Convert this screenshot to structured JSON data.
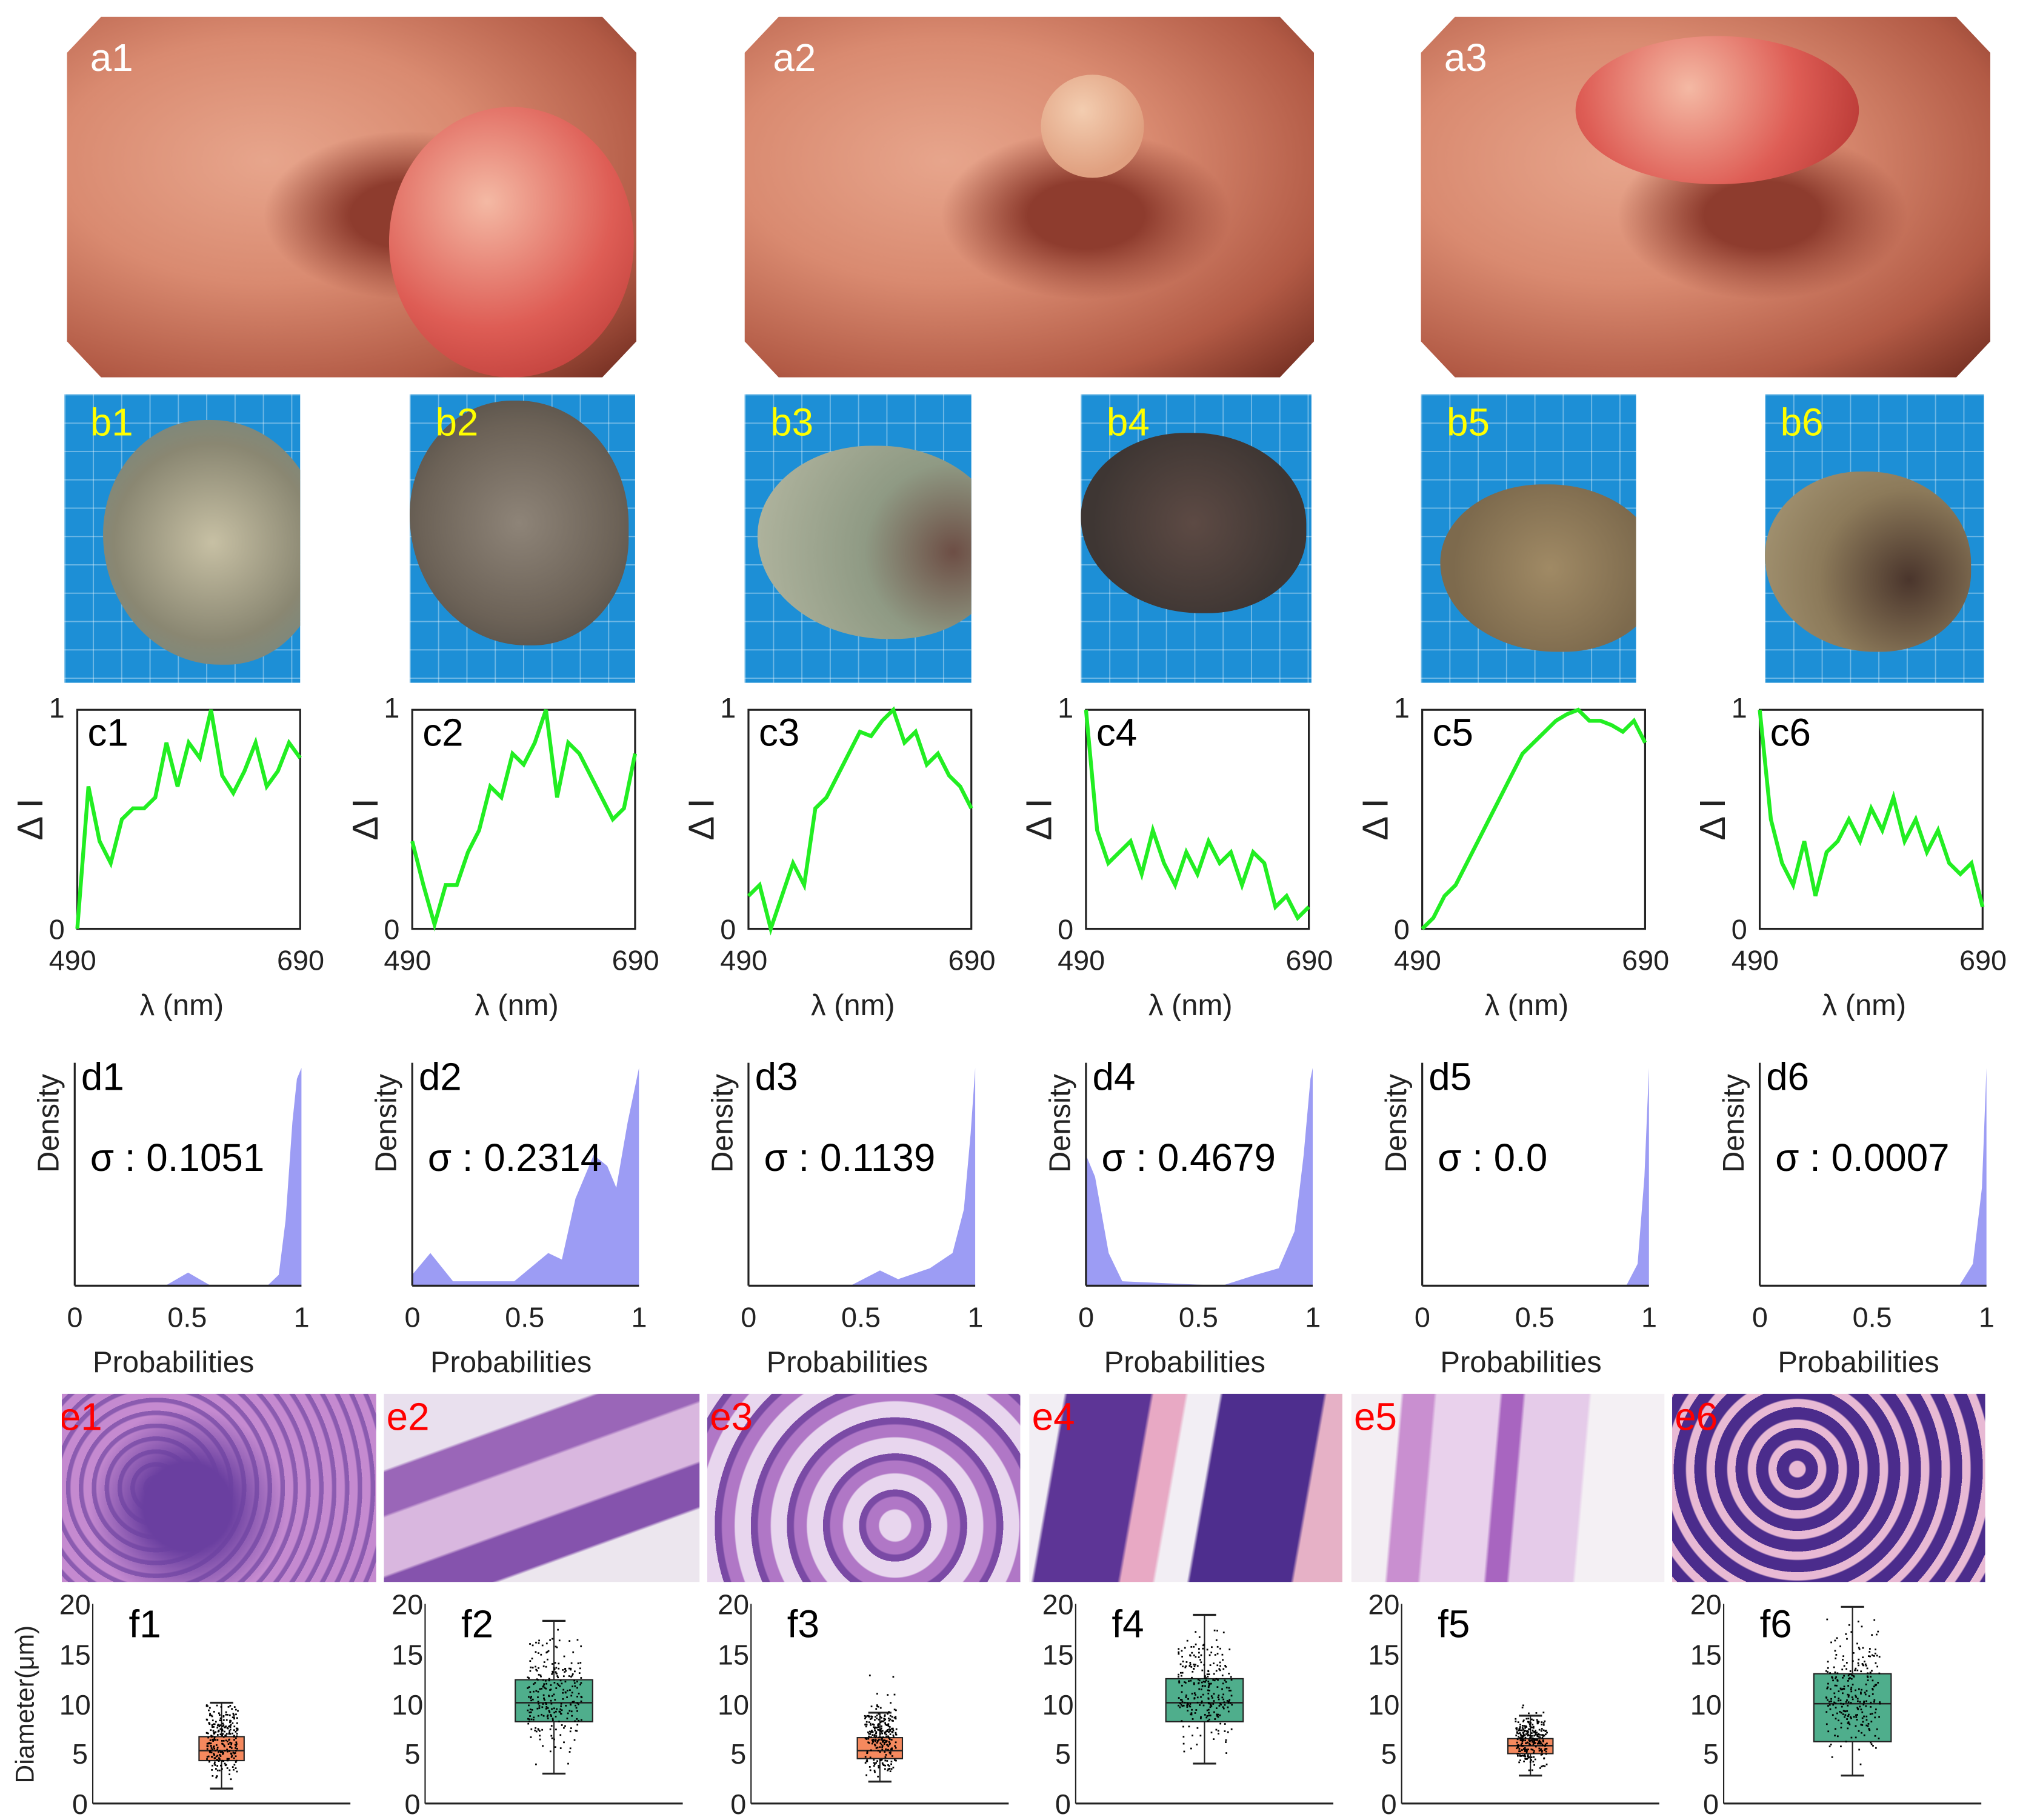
{
  "panels": {
    "a": [
      {
        "label": "a1"
      },
      {
        "label": "a2"
      },
      {
        "label": "a3"
      }
    ],
    "b": [
      {
        "label": "b1"
      },
      {
        "label": "b2"
      },
      {
        "label": "b3"
      },
      {
        "label": "b4"
      },
      {
        "label": "b5"
      },
      {
        "label": "b6"
      }
    ],
    "e": [
      {
        "label": "e1"
      },
      {
        "label": "e2"
      },
      {
        "label": "e3"
      },
      {
        "label": "e4"
      },
      {
        "label": "e5"
      },
      {
        "label": "e6"
      }
    ]
  },
  "colors": {
    "spectrum_line": "#22ee22",
    "density_fill": "#9c9cf4",
    "box_orange": "#f5895e",
    "box_green": "#4fae8c",
    "label_a": "#ffffff",
    "label_b": "#ffff00",
    "label_e": "#ff0000"
  },
  "chart_data": [
    {
      "type": "line",
      "group": "c",
      "xlabel": "λ (nm)",
      "ylabel": "Δ I",
      "xlim": [
        490,
        690
      ],
      "ylim": [
        0,
        1
      ],
      "xticks": [
        "490",
        "690"
      ],
      "yticks": [
        "0",
        "1"
      ],
      "x": [
        490,
        500,
        510,
        520,
        530,
        540,
        550,
        560,
        570,
        580,
        590,
        600,
        610,
        620,
        630,
        640,
        650,
        660,
        670,
        680,
        690
      ],
      "panels": [
        {
          "label": "c1",
          "values": [
            0,
            0.65,
            0.4,
            0.3,
            0.5,
            0.55,
            0.55,
            0.6,
            0.85,
            0.65,
            0.85,
            0.78,
            1.0,
            0.7,
            0.62,
            0.72,
            0.85,
            0.65,
            0.72,
            0.85,
            0.78
          ]
        },
        {
          "label": "c2",
          "values": [
            0.4,
            0.2,
            0.02,
            0.2,
            0.2,
            0.35,
            0.45,
            0.65,
            0.6,
            0.8,
            0.75,
            0.85,
            1.0,
            0.6,
            0.85,
            0.8,
            0.7,
            0.6,
            0.5,
            0.55,
            0.8
          ]
        },
        {
          "label": "c3",
          "values": [
            0.15,
            0.2,
            0.0,
            0.15,
            0.3,
            0.2,
            0.55,
            0.6,
            0.7,
            0.8,
            0.9,
            0.88,
            0.95,
            1.0,
            0.85,
            0.9,
            0.75,
            0.8,
            0.7,
            0.65,
            0.55
          ]
        },
        {
          "label": "c4",
          "values": [
            1.0,
            0.45,
            0.3,
            0.35,
            0.4,
            0.25,
            0.45,
            0.3,
            0.2,
            0.35,
            0.25,
            0.4,
            0.3,
            0.35,
            0.2,
            0.35,
            0.3,
            0.1,
            0.15,
            0.05,
            0.1
          ]
        },
        {
          "label": "c5",
          "values": [
            0,
            0.05,
            0.15,
            0.2,
            0.3,
            0.4,
            0.5,
            0.6,
            0.7,
            0.8,
            0.85,
            0.9,
            0.95,
            0.98,
            1.0,
            0.95,
            0.95,
            0.93,
            0.9,
            0.95,
            0.85
          ]
        },
        {
          "label": "c6",
          "values": [
            1.0,
            0.5,
            0.3,
            0.2,
            0.4,
            0.15,
            0.35,
            0.4,
            0.5,
            0.4,
            0.55,
            0.45,
            0.6,
            0.4,
            0.5,
            0.35,
            0.45,
            0.3,
            0.25,
            0.3,
            0.1
          ]
        }
      ]
    },
    {
      "type": "area",
      "group": "d",
      "xlabel": "Probabilities",
      "ylabel": "Density",
      "xlim": [
        0,
        1
      ],
      "xticks": [
        "0",
        "0.5",
        "1"
      ],
      "panels": [
        {
          "label": "d1",
          "sigma": "σ : 0.1051",
          "points": [
            [
              0,
              0
            ],
            [
              0.4,
              0
            ],
            [
              0.5,
              0.06
            ],
            [
              0.6,
              0
            ],
            [
              0.85,
              0
            ],
            [
              0.9,
              0.05
            ],
            [
              0.93,
              0.3
            ],
            [
              0.96,
              0.75
            ],
            [
              0.98,
              0.95
            ],
            [
              1,
              1
            ]
          ]
        },
        {
          "label": "d2",
          "sigma": "σ : 0.2314",
          "points": [
            [
              0,
              0.05
            ],
            [
              0.08,
              0.15
            ],
            [
              0.18,
              0.02
            ],
            [
              0.45,
              0.02
            ],
            [
              0.6,
              0.15
            ],
            [
              0.66,
              0.12
            ],
            [
              0.72,
              0.4
            ],
            [
              0.8,
              0.6
            ],
            [
              0.86,
              0.55
            ],
            [
              0.9,
              0.45
            ],
            [
              0.95,
              0.75
            ],
            [
              1,
              1
            ]
          ]
        },
        {
          "label": "d3",
          "sigma": "σ : 0.1139",
          "points": [
            [
              0,
              0
            ],
            [
              0.45,
              0
            ],
            [
              0.58,
              0.07
            ],
            [
              0.66,
              0.03
            ],
            [
              0.8,
              0.08
            ],
            [
              0.9,
              0.15
            ],
            [
              0.95,
              0.35
            ],
            [
              0.98,
              0.7
            ],
            [
              1,
              1
            ]
          ]
        },
        {
          "label": "d4",
          "sigma": "σ : 0.4679",
          "points": [
            [
              0,
              0.6
            ],
            [
              0.04,
              0.5
            ],
            [
              0.1,
              0.15
            ],
            [
              0.16,
              0.02
            ],
            [
              0.6,
              0
            ],
            [
              0.75,
              0.05
            ],
            [
              0.85,
              0.08
            ],
            [
              0.92,
              0.25
            ],
            [
              0.96,
              0.6
            ],
            [
              0.99,
              0.95
            ],
            [
              1,
              1
            ]
          ]
        },
        {
          "label": "d5",
          "sigma": "σ : 0.0",
          "points": [
            [
              0,
              0
            ],
            [
              0.9,
              0
            ],
            [
              0.95,
              0.1
            ],
            [
              0.98,
              0.5
            ],
            [
              1,
              1
            ]
          ]
        },
        {
          "label": "d6",
          "sigma": "σ : 0.0007",
          "points": [
            [
              0,
              0
            ],
            [
              0.88,
              0
            ],
            [
              0.94,
              0.1
            ],
            [
              0.98,
              0.45
            ],
            [
              1,
              1
            ]
          ]
        }
      ]
    },
    {
      "type": "box",
      "group": "f",
      "ylabel": "Diameter(μm)",
      "ylim": [
        0,
        20
      ],
      "yticks": [
        "0",
        "5",
        "10",
        "15",
        "20"
      ],
      "panels": [
        {
          "label": "f1",
          "color": "orange",
          "q1": 4.3,
          "median": 5.3,
          "q3": 6.7,
          "whisker_low": 1.5,
          "whisker_high": 10.1,
          "max": 12
        },
        {
          "label": "f2",
          "color": "green",
          "q1": 8.2,
          "median": 10.1,
          "q3": 12.4,
          "whisker_low": 3,
          "whisker_high": 18.3,
          "max": 19.5
        },
        {
          "label": "f3",
          "color": "orange",
          "q1": 4.5,
          "median": 5.3,
          "q3": 6.6,
          "whisker_low": 2.2,
          "whisker_high": 9.1,
          "max": 15
        },
        {
          "label": "f4",
          "color": "green",
          "q1": 8.2,
          "median": 10.1,
          "q3": 12.5,
          "whisker_low": 4,
          "whisker_high": 18.9,
          "max": 19.5
        },
        {
          "label": "f5",
          "color": "orange",
          "q1": 5,
          "median": 5.8,
          "q3": 6.5,
          "whisker_low": 2.8,
          "whisker_high": 8.8,
          "max": 11
        },
        {
          "label": "f6",
          "color": "green",
          "q1": 6.2,
          "median": 10,
          "q3": 13,
          "whisker_low": 2.8,
          "whisker_high": 19.7,
          "max": 19.7
        }
      ]
    }
  ]
}
